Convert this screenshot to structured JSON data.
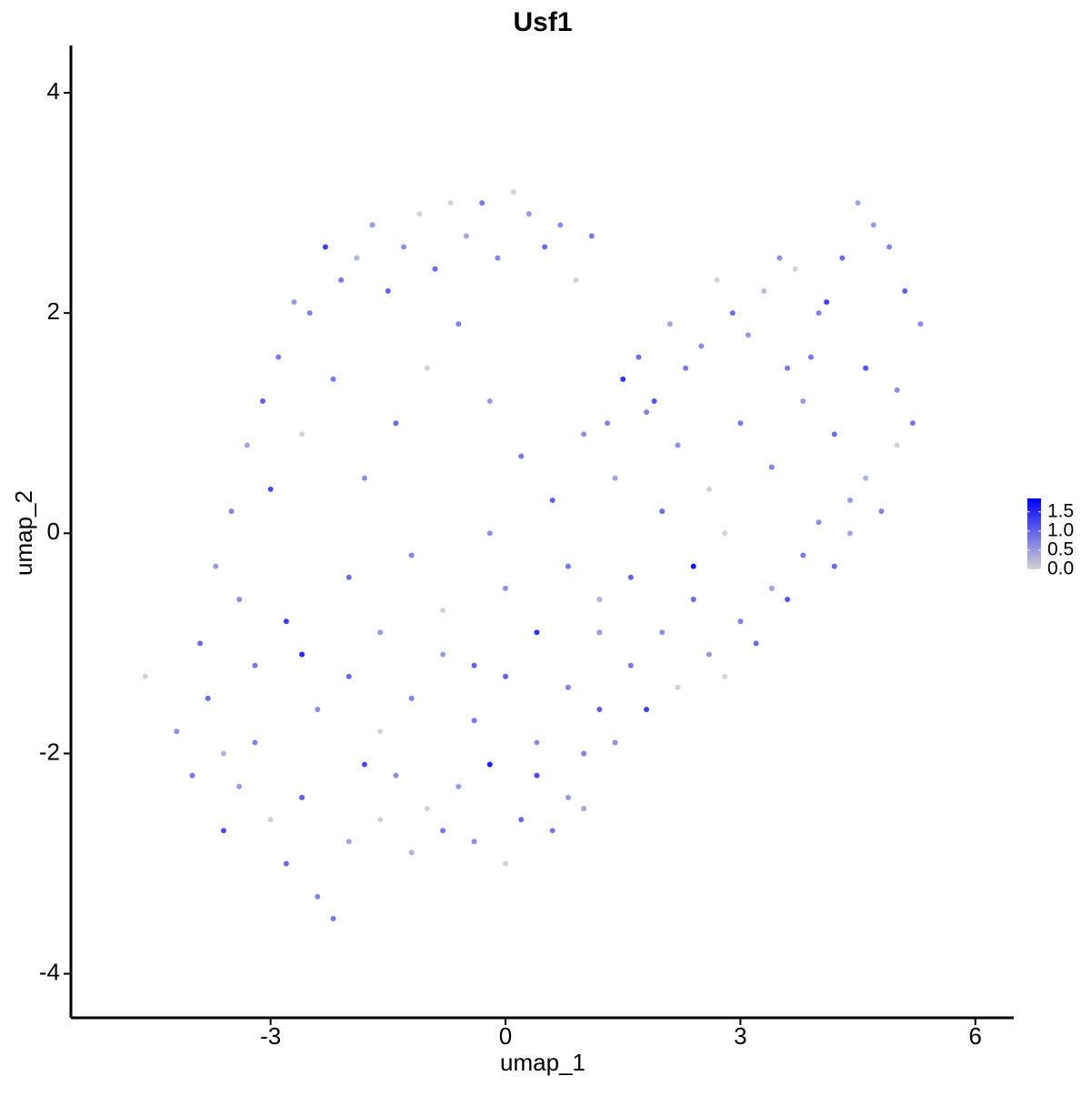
{
  "chart_data": {
    "type": "scatter",
    "title": "Usf1",
    "x_label": "umap_1",
    "y_label": "umap_2",
    "xlim": [
      -5.55,
      6.49
    ],
    "ylim": [
      -4.4,
      4.43
    ],
    "xticks": [
      -3,
      0,
      3,
      6
    ],
    "yticks": [
      -4,
      -2,
      0,
      2,
      4
    ],
    "color_low": "#d3d3d3",
    "color_high": "#0000ff",
    "color_range": [
      0,
      1.85
    ],
    "color_ticks": [
      {
        "value": 0,
        "label": "0.0"
      },
      {
        "value": 0.5,
        "label": "0.5"
      },
      {
        "value": 1,
        "label": "1.0"
      },
      {
        "value": 1.5,
        "label": "1.5"
      }
    ],
    "x": [
      -4.6,
      -4.2,
      -4.0,
      -3.8,
      -3.6,
      -3.4,
      -3.2,
      -3.0,
      -2.8,
      -2.6,
      -2.4,
      -2.2,
      -2.0,
      -1.8,
      -1.6,
      -1.4,
      -1.2,
      -1.0,
      -0.8,
      -0.6,
      -0.4,
      -0.2,
      0.0,
      0.2,
      0.4,
      0.6,
      0.8,
      1.0,
      1.2,
      1.4,
      1.6,
      1.8,
      2.0,
      2.2,
      2.4,
      2.6,
      2.8,
      3.0,
      3.2,
      3.4,
      3.6,
      3.8,
      4.0,
      4.2,
      4.4,
      4.6,
      4.8,
      5.0,
      5.2,
      5.3,
      5.1,
      4.9,
      4.7,
      4.5,
      4.3,
      4.1,
      3.9,
      3.7,
      3.5,
      3.3,
      3.1,
      2.9,
      2.7,
      2.5,
      2.3,
      2.1,
      1.9,
      1.7,
      1.5,
      1.3,
      1.1,
      0.9,
      0.7,
      0.5,
      0.3,
      0.1,
      -0.1,
      -0.3,
      -0.5,
      -0.7,
      -0.9,
      -1.1,
      -1.3,
      -1.5,
      -1.7,
      -1.9,
      -2.1,
      -2.3,
      -2.5,
      -2.7,
      -2.9,
      -3.1,
      -3.3,
      -3.5,
      -3.7,
      -3.9,
      -3.4,
      -3.0,
      -2.6,
      -2.2,
      -1.8,
      -1.4,
      -1.0,
      -0.6,
      -0.2,
      0.2,
      0.6,
      1.0,
      1.4,
      1.8,
      2.2,
      2.6,
      3.0,
      3.4,
      3.8,
      4.2,
      4.6,
      5.0,
      4.4,
      3.6,
      -2.0,
      -1.6,
      -1.2,
      -0.8,
      -0.4,
      0.0,
      0.4,
      0.8,
      1.2,
      1.6,
      -3.2,
      -2.8,
      -2.4,
      -2.0,
      -1.6,
      -1.2,
      -0.8,
      -0.4,
      0.0,
      0.4,
      0.8,
      1.2,
      2.0,
      2.4,
      1.0,
      -2.6,
      -3.6,
      -0.2,
      2.8,
      4.0
    ],
    "y": [
      -1.3,
      -1.8,
      -2.2,
      -1.5,
      -2.7,
      -2.3,
      -1.9,
      -2.6,
      -3.0,
      -2.4,
      -3.3,
      -3.5,
      -2.8,
      -2.1,
      -2.6,
      -2.2,
      -2.9,
      -2.5,
      -2.7,
      -2.3,
      -2.8,
      -2.1,
      -3.0,
      -2.6,
      -2.2,
      -2.7,
      -2.4,
      -2.0,
      -1.6,
      -1.9,
      -1.2,
      -1.6,
      -0.9,
      -1.4,
      -0.6,
      -1.1,
      -1.3,
      -0.8,
      -1.0,
      -0.5,
      -0.6,
      -0.2,
      0.1,
      -0.3,
      0.3,
      0.5,
      0.2,
      0.8,
      1.0,
      1.9,
      2.2,
      2.6,
      2.8,
      3.0,
      2.5,
      2.1,
      1.6,
      2.4,
      2.5,
      2.2,
      1.8,
      2.0,
      2.3,
      1.7,
      1.5,
      1.9,
      1.2,
      1.6,
      1.4,
      1.0,
      2.7,
      2.3,
      2.8,
      2.6,
      2.9,
      3.1,
      2.5,
      3.0,
      2.7,
      3.0,
      2.4,
      2.9,
      2.6,
      2.2,
      2.8,
      2.5,
      2.3,
      2.6,
      2.0,
      2.1,
      1.6,
      1.2,
      0.8,
      0.2,
      -0.3,
      -1.0,
      -0.6,
      0.4,
      0.9,
      1.4,
      0.5,
      1.0,
      1.5,
      1.9,
      1.2,
      0.7,
      0.3,
      0.9,
      0.5,
      1.1,
      0.8,
      0.4,
      1.0,
      0.6,
      1.2,
      0.9,
      1.5,
      1.3,
      0.0,
      1.5,
      -0.4,
      -0.9,
      -0.2,
      -0.7,
      -1.2,
      -0.5,
      -0.9,
      -0.3,
      -0.6,
      -0.4,
      -1.2,
      -0.8,
      -1.6,
      -1.3,
      -1.8,
      -1.5,
      -1.1,
      -1.7,
      -1.3,
      -1.9,
      -1.4,
      -0.9,
      0.2,
      -0.3,
      -2.5,
      -1.1,
      -2.0,
      0.0,
      0.0,
      2.0
    ],
    "values": [
      0,
      0.6,
      0.8,
      0.9,
      1.2,
      0.5,
      0.7,
      0,
      0.9,
      1.0,
      0.7,
      0.8,
      0.4,
      1.2,
      0,
      0.6,
      0.3,
      0,
      0.8,
      0.5,
      0.6,
      1.6,
      0,
      0.9,
      1.2,
      0.8,
      0.5,
      0.7,
      1.0,
      0.6,
      0.8,
      1.3,
      0.6,
      0,
      0.9,
      0.5,
      0,
      0.7,
      0.9,
      0.4,
      1.1,
      0.8,
      0.6,
      0.9,
      0.5,
      0.3,
      0.7,
      0,
      0.8,
      0.6,
      1.0,
      0.7,
      0.5,
      0.4,
      0.9,
      1.3,
      0.8,
      0,
      0.6,
      0.2,
      0.5,
      0.9,
      0,
      0.6,
      0.8,
      0.4,
      1.1,
      0.9,
      1.4,
      0.7,
      0.8,
      0,
      0.6,
      0.9,
      0.5,
      0,
      0.7,
      0.8,
      0.4,
      0,
      0.9,
      0,
      0.6,
      1.0,
      0.5,
      0.3,
      0.8,
      1.3,
      0.7,
      0.5,
      0.8,
      1.0,
      0.4,
      0.7,
      0.5,
      0.9,
      0.6,
      1.2,
      0,
      0.8,
      0.6,
      0.9,
      0,
      0.7,
      0.5,
      0.8,
      1.0,
      0.6,
      0.4,
      0.7,
      0.6,
      0,
      0.8,
      0.7,
      0.5,
      0.9,
      1.1,
      0.6,
      0.4,
      0.8,
      0.9,
      0.5,
      0.7,
      0,
      1.0,
      0.6,
      1.4,
      0.8,
      0.3,
      1.0,
      0.8,
      1.3,
      0.6,
      0.9,
      0,
      0.7,
      0.5,
      0.8,
      1.0,
      0.6,
      0.7,
      0.5,
      0.9,
      1.7,
      0.4,
      1.5,
      0.3,
      0.6,
      0,
      0.7
    ]
  }
}
